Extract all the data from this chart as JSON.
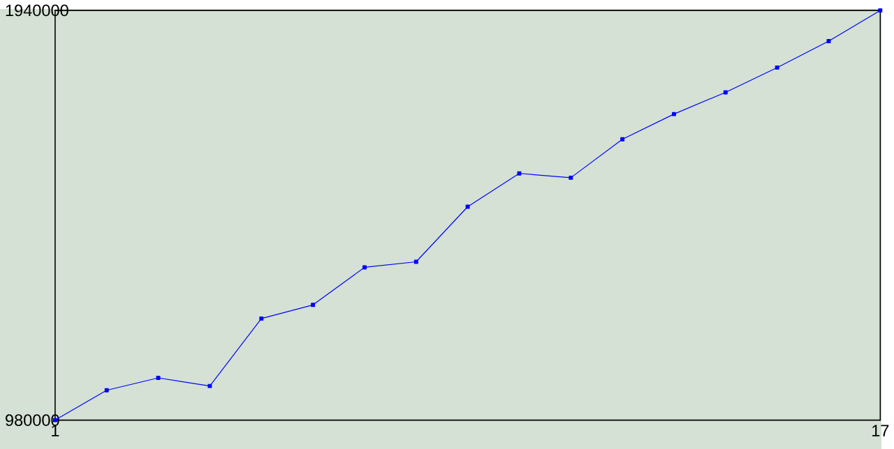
{
  "chart_data": {
    "type": "line",
    "x": [
      1,
      2,
      3,
      4,
      5,
      6,
      7,
      8,
      9,
      10,
      11,
      12,
      13,
      14,
      15,
      16,
      17
    ],
    "series": [
      {
        "color": "#0000ff",
        "values": [
          980000,
          1050000,
          1079000,
          1060000,
          1218000,
          1250000,
          1338000,
          1351000,
          1480000,
          1558000,
          1548000,
          1638000,
          1697000,
          1748000,
          1806000,
          1868000,
          1940000
        ]
      }
    ],
    "xlim": [
      1,
      17
    ],
    "ylim": [
      980000,
      1940000
    ],
    "xticks": [
      1,
      17
    ],
    "yticks": [
      980000,
      1940000
    ],
    "marker": "square",
    "line_style": "solid"
  }
}
